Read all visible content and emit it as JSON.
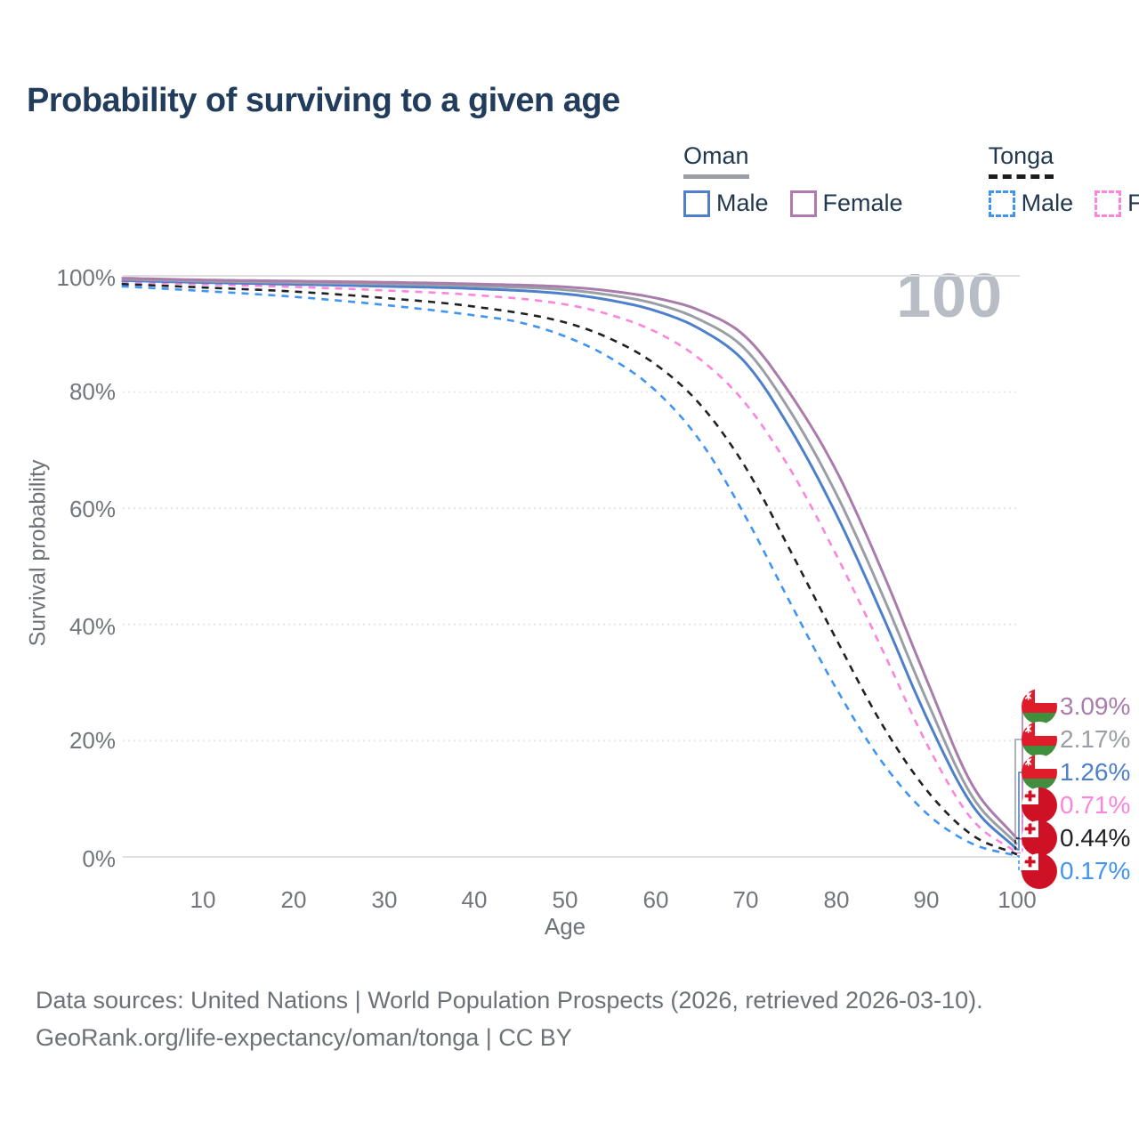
{
  "page": {
    "title": "Probability of surviving to a given age"
  },
  "legend": {
    "groups": [
      {
        "label": "Oman",
        "line_style": "solid",
        "underline_color": "#9a9ea5",
        "items": [
          {
            "label": "Male",
            "color": "#4d7fca"
          },
          {
            "label": "Female",
            "color": "#b07ab1"
          }
        ]
      },
      {
        "label": "Tonga",
        "line_style": "dashed",
        "underline_color": "#1c1c1e",
        "items": [
          {
            "label": "Male",
            "color": "#4094f3"
          },
          {
            "label": "Female",
            "color": "#fb85dc"
          }
        ]
      }
    ]
  },
  "chart_data": {
    "type": "line",
    "title": "Probability of surviving to a given age",
    "xlabel": "Age",
    "ylabel": "Survival probability",
    "xlim": [
      0,
      100
    ],
    "ylim": [
      0,
      100
    ],
    "xticks": [
      10,
      20,
      30,
      40,
      50,
      60,
      70,
      80,
      90,
      100
    ],
    "yticks": [
      "0%",
      "20%",
      "40%",
      "60%",
      "80%",
      "100%"
    ],
    "grid": "horizontal-dotted",
    "age_counter_watermark": "100",
    "legend_position": "top-right",
    "series": [
      {
        "name": "Oman Female",
        "country": "Oman",
        "sex": "female",
        "color": "#a97cab",
        "dashed": false,
        "end_label": "3.09%",
        "end_value": 3.09,
        "points": [
          [
            1,
            99.6
          ],
          [
            10,
            99.3
          ],
          [
            20,
            99.1
          ],
          [
            30,
            98.9
          ],
          [
            40,
            98.6
          ],
          [
            50,
            98.1
          ],
          [
            55,
            97.4
          ],
          [
            60,
            96.2
          ],
          [
            65,
            94.0
          ],
          [
            70,
            89.5
          ],
          [
            75,
            79.5
          ],
          [
            80,
            66.5
          ],
          [
            85,
            49.5
          ],
          [
            90,
            30.5
          ],
          [
            95,
            12.5
          ],
          [
            100,
            3.09
          ]
        ]
      },
      {
        "name": "Oman Both sexes",
        "country": "Oman",
        "sex": "all",
        "color": "#9a9ea5",
        "dashed": false,
        "end_label": "2.17%",
        "end_value": 2.17,
        "points": [
          [
            1,
            99.4
          ],
          [
            10,
            99.1
          ],
          [
            20,
            98.85
          ],
          [
            30,
            98.6
          ],
          [
            40,
            98.25
          ],
          [
            50,
            97.6
          ],
          [
            55,
            96.7
          ],
          [
            60,
            95.2
          ],
          [
            65,
            92.4
          ],
          [
            70,
            87.3
          ],
          [
            75,
            76.5
          ],
          [
            80,
            62.5
          ],
          [
            85,
            45.5
          ],
          [
            90,
            27.0
          ],
          [
            95,
            10.5
          ],
          [
            100,
            2.17
          ]
        ]
      },
      {
        "name": "Oman Male",
        "country": "Oman",
        "sex": "male",
        "color": "#4d7fca",
        "dashed": false,
        "end_label": "1.26%",
        "end_value": 1.26,
        "points": [
          [
            1,
            99.2
          ],
          [
            10,
            98.85
          ],
          [
            20,
            98.55
          ],
          [
            30,
            98.2
          ],
          [
            40,
            97.8
          ],
          [
            50,
            96.9
          ],
          [
            55,
            95.8
          ],
          [
            60,
            94.0
          ],
          [
            65,
            90.8
          ],
          [
            70,
            85.0
          ],
          [
            75,
            73.5
          ],
          [
            80,
            59.0
          ],
          [
            85,
            42.0
          ],
          [
            90,
            24.0
          ],
          [
            95,
            9.0
          ],
          [
            100,
            1.26
          ]
        ]
      },
      {
        "name": "Tonga Female",
        "country": "Tonga",
        "sex": "female",
        "color": "#fb85dc",
        "dashed": true,
        "end_label": "0.71%",
        "end_value": 0.71,
        "points": [
          [
            1,
            99.0
          ],
          [
            10,
            98.55
          ],
          [
            20,
            98.1
          ],
          [
            30,
            97.5
          ],
          [
            40,
            96.7
          ],
          [
            50,
            95.1
          ],
          [
            55,
            93.3
          ],
          [
            60,
            90.4
          ],
          [
            65,
            85.6
          ],
          [
            70,
            78.0
          ],
          [
            75,
            66.5
          ],
          [
            80,
            52.0
          ],
          [
            85,
            36.0
          ],
          [
            90,
            19.5
          ],
          [
            95,
            6.5
          ],
          [
            100,
            0.71
          ]
        ]
      },
      {
        "name": "Tonga Both sexes",
        "country": "Tonga",
        "sex": "all",
        "color": "#202124",
        "dashed": true,
        "end_label": "0.44%",
        "end_value": 0.44,
        "points": [
          [
            1,
            98.6
          ],
          [
            10,
            98.0
          ],
          [
            20,
            97.3
          ],
          [
            30,
            96.2
          ],
          [
            40,
            94.7
          ],
          [
            50,
            92.0
          ],
          [
            55,
            89.2
          ],
          [
            60,
            84.8
          ],
          [
            65,
            77.8
          ],
          [
            70,
            67.0
          ],
          [
            75,
            52.5
          ],
          [
            80,
            37.5
          ],
          [
            85,
            23.0
          ],
          [
            90,
            11.5
          ],
          [
            95,
            3.8
          ],
          [
            100,
            0.44
          ]
        ]
      },
      {
        "name": "Tonga Male",
        "country": "Tonga",
        "sex": "male",
        "color": "#4094f3",
        "dashed": true,
        "end_label": "0.17%",
        "end_value": 0.17,
        "points": [
          [
            1,
            98.2
          ],
          [
            10,
            97.4
          ],
          [
            20,
            96.4
          ],
          [
            30,
            95.0
          ],
          [
            40,
            93.2
          ],
          [
            45,
            92.0
          ],
          [
            50,
            89.6
          ],
          [
            55,
            85.9
          ],
          [
            60,
            80.3
          ],
          [
            65,
            71.5
          ],
          [
            70,
            58.5
          ],
          [
            75,
            43.5
          ],
          [
            80,
            29.0
          ],
          [
            85,
            16.5
          ],
          [
            90,
            7.5
          ],
          [
            95,
            2.3
          ],
          [
            100,
            0.17
          ]
        ]
      }
    ]
  },
  "footer": {
    "line1": "Data sources: United Nations | World Population Prospects (2026, retrieved 2026-03-10).",
    "line2": "GeoRank.org/life-expectancy/oman/tonga | CC BY"
  }
}
